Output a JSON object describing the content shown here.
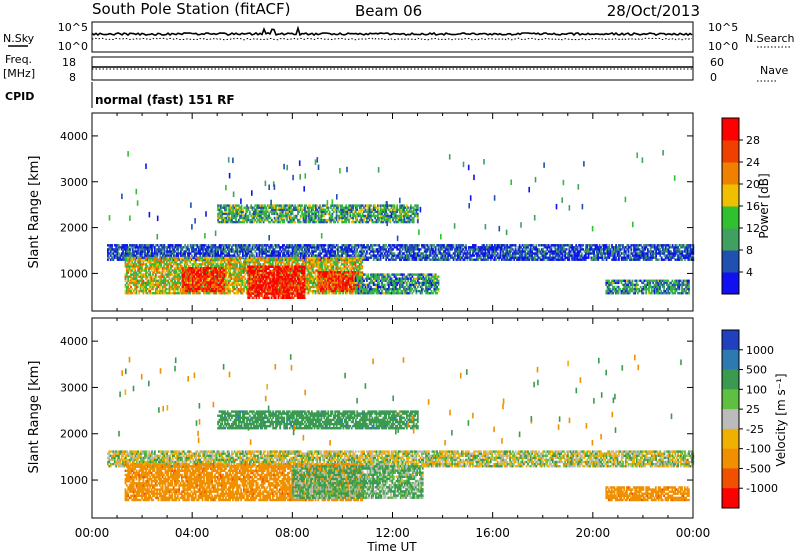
{
  "header": {
    "station": "South Pole Station (fitACF)",
    "beam": "Beam 06",
    "date": "28/Oct/2013"
  },
  "top_panels": {
    "nsky_label": "N.Sky",
    "nsky_ticks": [
      "10^5",
      "10^0"
    ],
    "nsearch_label": "N.Search",
    "nsearch_ticks": [
      "10^5",
      "10^0"
    ],
    "freq_label_line1": "Freq.",
    "freq_label_line2": "[MHz]",
    "freq_ticks": [
      "18",
      "8"
    ],
    "nave_label": "Nave",
    "nave_ticks": [
      "60",
      "0"
    ],
    "cpid_label": "CPID",
    "cpid_value": "normal (fast) 151 RF"
  },
  "chart_data": [
    {
      "type": "heatmap",
      "name": "power",
      "ylabel": "Slant Range [km]",
      "xlabel": "",
      "y_ticks": [
        1000,
        2000,
        3000,
        4000
      ],
      "ylim": [
        180,
        4500
      ],
      "xlim_hours": [
        0,
        24
      ],
      "colorbar": {
        "label": "Power [dB]",
        "ticks": [
          "4",
          "8",
          "12",
          "16",
          "20",
          "24",
          "28"
        ],
        "colors": [
          "#1010f0",
          "#2050b0",
          "#40a060",
          "#30c030",
          "#f0c000",
          "#f08000",
          "#f04000",
          "#ff0000"
        ]
      },
      "bands": [
        {
          "t0": 0.6,
          "t1": 24,
          "r0": 1280,
          "r1": 1620,
          "intensity": 0.15
        },
        {
          "t0": 1.3,
          "t1": 10.8,
          "r0": 550,
          "r1": 1350,
          "intensity": 0.55
        },
        {
          "t0": 3.6,
          "t1": 5.3,
          "r0": 600,
          "r1": 1100,
          "intensity": 0.9
        },
        {
          "t0": 6.2,
          "t1": 8.5,
          "r0": 450,
          "r1": 1150,
          "intensity": 0.95
        },
        {
          "t0": 9.0,
          "t1": 10.6,
          "r0": 600,
          "r1": 1050,
          "intensity": 0.85
        },
        {
          "t0": 10.5,
          "t1": 13.8,
          "r0": 550,
          "r1": 1000,
          "intensity": 0.3
        },
        {
          "t0": 20.5,
          "t1": 23.8,
          "r0": 550,
          "r1": 850,
          "intensity": 0.3
        },
        {
          "t0": 5.0,
          "t1": 13.0,
          "r0": 2100,
          "r1": 2500,
          "intensity": 0.35
        }
      ]
    },
    {
      "type": "heatmap",
      "name": "velocity",
      "ylabel": "Slant Range [km]",
      "xlabel": "Time UT",
      "y_ticks": [
        1000,
        2000,
        3000,
        4000
      ],
      "ylim": [
        180,
        4500
      ],
      "xlim_hours": [
        0,
        24
      ],
      "x_ticks": [
        "00:00",
        "04:00",
        "08:00",
        "12:00",
        "16:00",
        "20:00",
        "00:00"
      ],
      "colorbar": {
        "label": "Velocity [m s⁻¹]",
        "ticks": [
          "1000",
          "500",
          "100",
          "25",
          "-25",
          "-100",
          "-500",
          "-1000"
        ],
        "colors": [
          "#2040c0",
          "#2c7ab0",
          "#3a9a50",
          "#5fbf40",
          "#bbbbbb",
          "#f0b000",
          "#f09000",
          "#f05000",
          "#ff0000"
        ]
      },
      "bands": [
        {
          "t0": 0.6,
          "t1": 24,
          "r0": 1280,
          "r1": 1600,
          "vel": 0
        },
        {
          "t0": 1.3,
          "t1": 10.8,
          "r0": 550,
          "r1": 1350,
          "vel": -300
        },
        {
          "t0": 8.0,
          "t1": 13.2,
          "r0": 600,
          "r1": 1300,
          "vel": 80
        },
        {
          "t0": 20.5,
          "t1": 23.8,
          "r0": 550,
          "r1": 850,
          "vel": -300
        },
        {
          "t0": 5.0,
          "t1": 13.0,
          "r0": 2100,
          "r1": 2500,
          "vel": 200
        }
      ]
    }
  ],
  "colors": {
    "axis": "#000000",
    "background": "#ffffff",
    "ground_scatter": "#bbbbbb"
  }
}
